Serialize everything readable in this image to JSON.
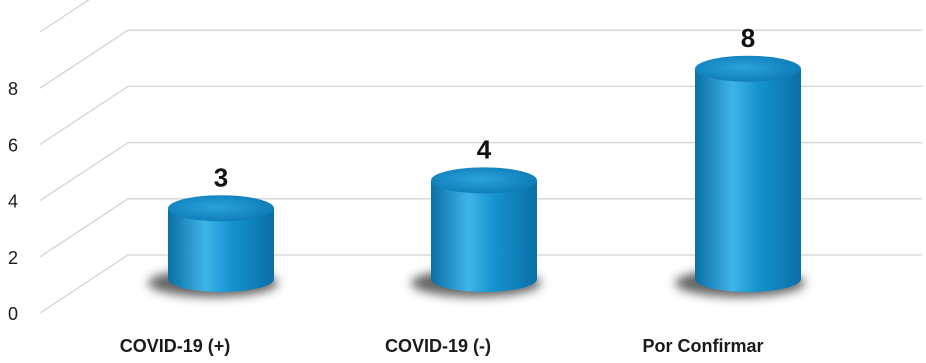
{
  "chart_data": {
    "type": "bar",
    "style": "3d-cylinder",
    "categories": [
      "COVID-19 (+)",
      "COVID-19 (-)",
      "Por Confirmar"
    ],
    "values": [
      3,
      4,
      8
    ],
    "data_labels": [
      "3",
      "4",
      "8"
    ],
    "y_ticks": [
      "0",
      "2",
      "4",
      "6",
      "8"
    ],
    "ylim": [
      0,
      10
    ],
    "grid": true,
    "legend": "none",
    "title": "",
    "xlabel": "",
    "ylabel": "",
    "colors": {
      "bar_light": "#3fb4e8",
      "bar_mid": "#1592cf",
      "bar_dark": "#0a6fa5",
      "bar_top": "#1a8cc6",
      "grid": "#d4d4d4",
      "shadow": "#333333"
    }
  }
}
